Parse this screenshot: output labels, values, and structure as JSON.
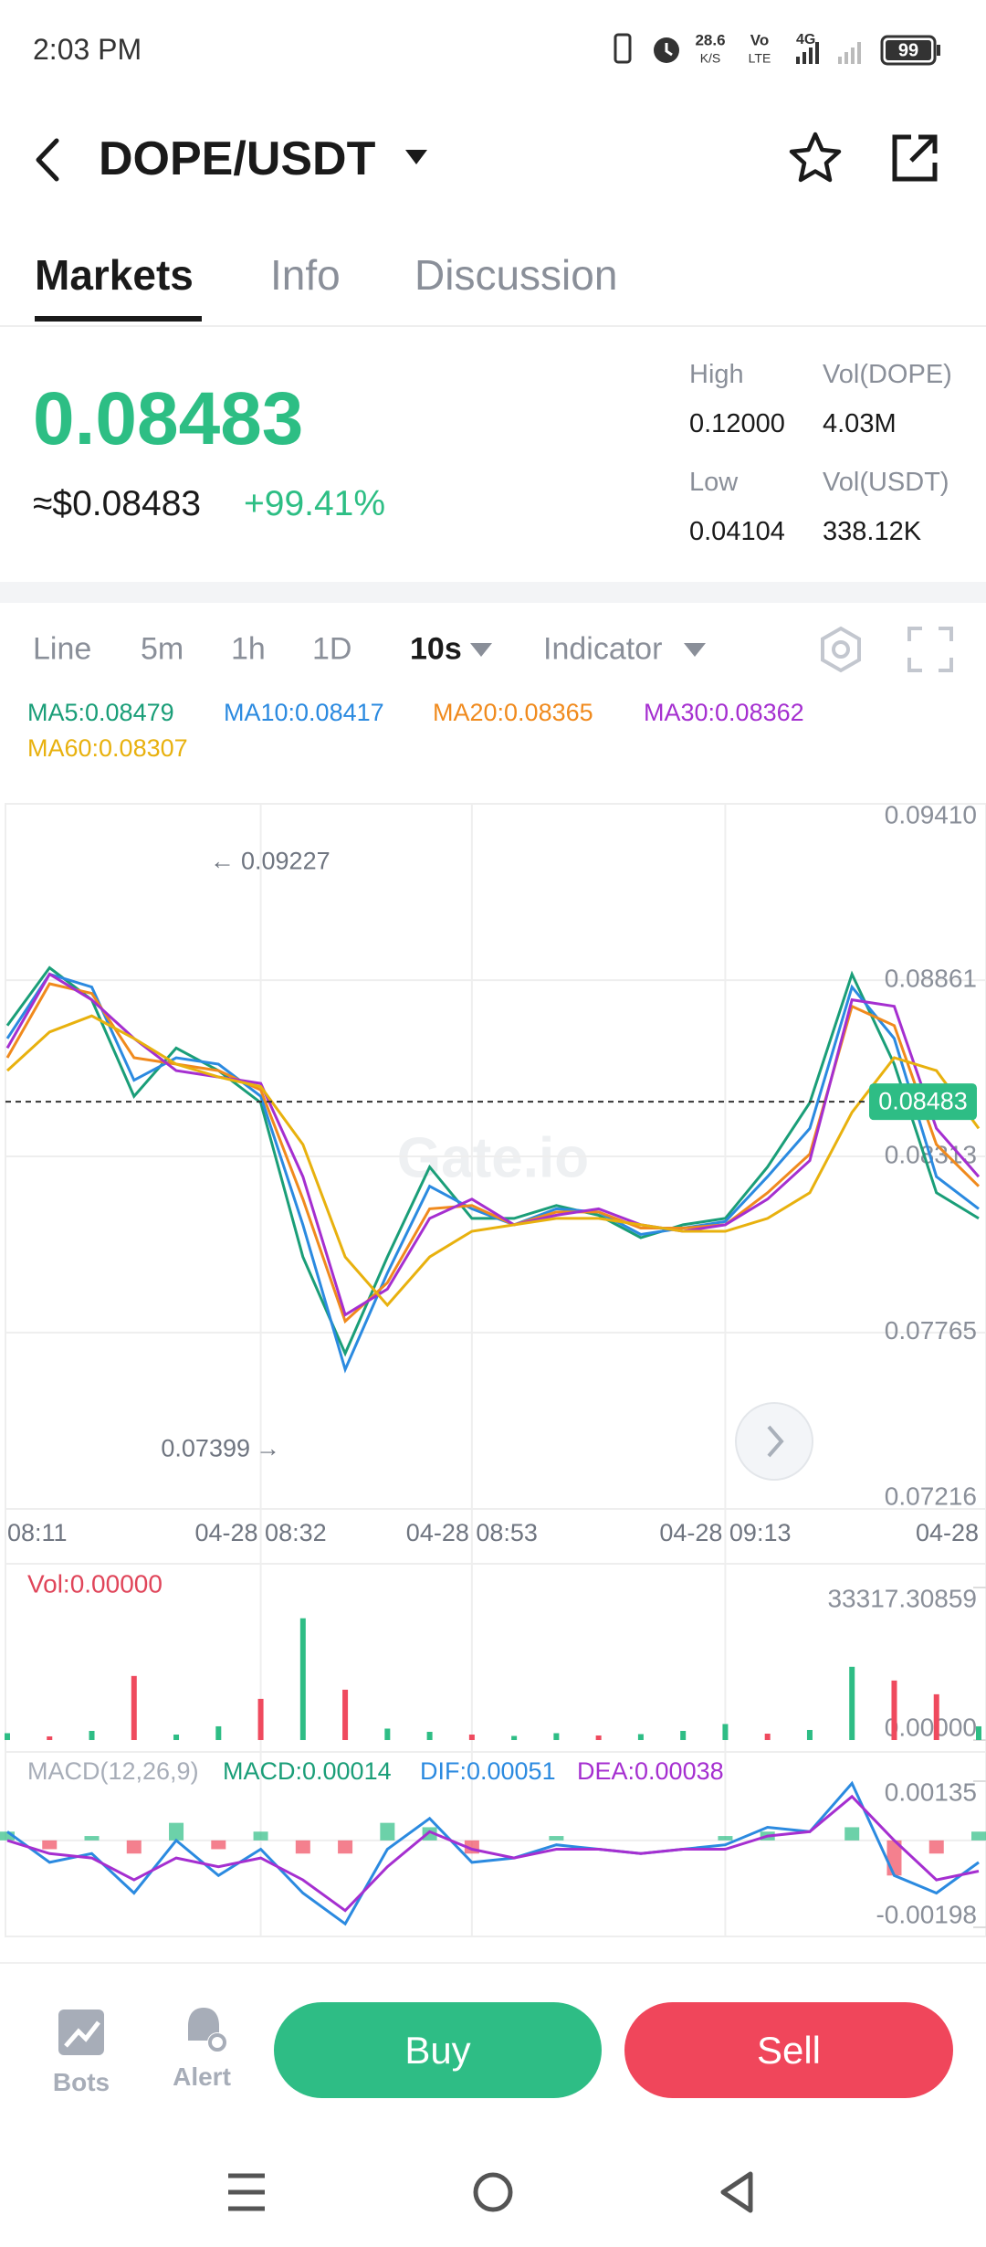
{
  "status_bar": {
    "time": "2:03 PM",
    "speed": "28.6",
    "speed_unit": "K/S",
    "volte_top": "Vo",
    "volte_bottom": "LTE",
    "network": "4G",
    "battery": "99"
  },
  "header": {
    "title": "DOPE/USDT"
  },
  "tabs": [
    "Markets",
    "Info",
    "Discussion"
  ],
  "ticker": {
    "price": "0.08483",
    "approx": "≈$0.08483",
    "change": "+99.41%",
    "stats": [
      {
        "label": "High",
        "value": "0.12000"
      },
      {
        "label": "Vol(DOPE)",
        "value": "4.03M"
      },
      {
        "label": "Low",
        "value": "0.04104"
      },
      {
        "label": "Vol(USDT)",
        "value": "338.12K"
      }
    ]
  },
  "toolbar": [
    "Line",
    "5m",
    "1h",
    "1D",
    "10s",
    "Indicator"
  ],
  "actions": {
    "bots": "Bots",
    "alert": "Alert",
    "buy": "Buy",
    "sell": "Sell"
  },
  "chart_data": [
    {
      "type": "line",
      "watermark": "Gate.io",
      "grid": true,
      "categories": [
        "08:11",
        null,
        null,
        null,
        null,
        null,
        "04-28 08:32",
        null,
        null,
        null,
        null,
        "04-28 08:53",
        null,
        null,
        null,
        null,
        null,
        "04-28 09:13",
        null,
        null,
        null,
        null,
        null,
        "04-28"
      ],
      "series": [
        {
          "name": "MA5:0.08479",
          "color": "#1a9e78",
          "values": [
            0.0872,
            0.089,
            0.088,
            0.085,
            0.0865,
            0.0858,
            0.0848,
            0.08,
            0.077,
            0.08,
            0.0828,
            0.0812,
            0.0812,
            0.0816,
            0.0813,
            0.0806,
            0.081,
            0.0812,
            0.0828,
            0.0848,
            0.0888,
            0.086,
            0.082,
            0.0812
          ]
        },
        {
          "name": "MA10:0.08417",
          "color": "#2b8ae0",
          "values": [
            0.0868,
            0.0888,
            0.0884,
            0.0855,
            0.0862,
            0.086,
            0.085,
            0.081,
            0.0765,
            0.0795,
            0.0822,
            0.0815,
            0.081,
            0.0815,
            0.0814,
            0.0807,
            0.0809,
            0.0811,
            0.0825,
            0.084,
            0.0884,
            0.0868,
            0.0825,
            0.0815
          ]
        },
        {
          "name": "MA20:0.08365",
          "color": "#f08a1d",
          "values": [
            0.0862,
            0.0885,
            0.0882,
            0.0862,
            0.086,
            0.0858,
            0.0852,
            0.0818,
            0.078,
            0.0792,
            0.0815,
            0.0816,
            0.081,
            0.0814,
            0.0814,
            0.0809,
            0.0809,
            0.081,
            0.082,
            0.0832,
            0.0878,
            0.0872,
            0.0835,
            0.0822
          ]
        },
        {
          "name": "MA30:0.08362",
          "color": "#a52fd0",
          "values": [
            0.0865,
            0.0888,
            0.088,
            0.0868,
            0.0858,
            0.0856,
            0.0854,
            0.0825,
            0.0782,
            0.079,
            0.0812,
            0.0818,
            0.081,
            0.0813,
            0.0815,
            0.081,
            0.0808,
            0.081,
            0.0818,
            0.083,
            0.088,
            0.0878,
            0.084,
            0.0825
          ]
        },
        {
          "name": "MA60:0.08307",
          "color": "#e8b10e",
          "values": [
            0.0858,
            0.087,
            0.0875,
            0.0868,
            0.086,
            0.0856,
            0.0853,
            0.0835,
            0.08,
            0.0785,
            0.08,
            0.0808,
            0.081,
            0.0812,
            0.0812,
            0.081,
            0.0808,
            0.0808,
            0.0812,
            0.082,
            0.0845,
            0.0862,
            0.0858,
            0.084
          ]
        }
      ],
      "ylim": [
        0.07216,
        0.0941
      ],
      "yticks": [
        {
          "value": 0.0941,
          "label": "0.09410"
        },
        0.08861,
        0.08313,
        0.07765,
        0.07216
      ],
      "last_price": 0.08483,
      "high_marker": 0.09227,
      "low_marker": 0.07399
    },
    {
      "type": "bar",
      "title": "Vol:0.00000",
      "values": [
        1500,
        800,
        2000,
        14000,
        1200,
        3000,
        9000,
        26600,
        11000,
        2500,
        1800,
        1200,
        900,
        1500,
        1000,
        1300,
        2000,
        3500,
        1400,
        2200,
        16000,
        13000,
        10000,
        3000
      ],
      "colors": [
        "#2ebd85",
        "#ef4a5e",
        "#2ebd85",
        "#ef4a5e",
        "#2ebd85",
        "#2ebd85",
        "#ef4a5e",
        "#2ebd85",
        "#ef4a5e",
        "#2ebd85",
        "#2ebd85",
        "#ef4a5e",
        "#2ebd85",
        "#2ebd85",
        "#ef4a5e",
        "#2ebd85",
        "#2ebd85",
        "#2ebd85",
        "#ef4a5e",
        "#2ebd85",
        "#2ebd85",
        "#ef4a5e",
        "#ef4a5e",
        "#2ebd85"
      ],
      "ylim": [
        0,
        33317.30859
      ],
      "yticks": [
        {
          "value": 0,
          "label": "0.00000"
        },
        33317.30859
      ]
    },
    {
      "type": "macd",
      "title": "MACD(12,26,9)",
      "bars": {
        "name": "MACD:0.00014",
        "up_color": "#2ebd85",
        "down_color": "#ef4a5e",
        "values": [
          0.0002,
          -0.0002,
          0.0001,
          -0.0003,
          0.0004,
          -0.0002,
          0.0002,
          -0.0003,
          -0.0003,
          0.0004,
          0.0003,
          -0.0003,
          0,
          0.0001,
          0,
          0,
          0,
          0.0001,
          0.0002,
          0,
          0.0003,
          -0.0008,
          -0.0003,
          0.0002
        ]
      },
      "series": [
        {
          "name": "DIF:0.00051",
          "color": "#2b8ae0",
          "values": [
            0.0002,
            -0.0005,
            -0.0003,
            -0.0012,
            0,
            -0.0008,
            -0.0002,
            -0.0012,
            -0.0019,
            -0.0002,
            0.0005,
            -0.0005,
            -0.0004,
            -0.0001,
            -0.0002,
            -0.0003,
            -0.0002,
            -0.0001,
            0.0003,
            0.0002,
            0.0013,
            -0.0008,
            -0.0012,
            -0.0005
          ]
        },
        {
          "name": "DEA:0.00038",
          "color": "#a52fd0",
          "values": [
            0,
            -0.0003,
            -0.0004,
            -0.0009,
            -0.0004,
            -0.0006,
            -0.0004,
            -0.0009,
            -0.0016,
            -0.0006,
            0.0002,
            -0.0002,
            -0.0004,
            -0.0002,
            -0.0002,
            -0.0003,
            -0.0002,
            -0.0002,
            0.0001,
            0.0002,
            0.001,
            0,
            -0.0009,
            -0.0007
          ]
        }
      ],
      "ylim": [
        -0.00198,
        0.00135
      ],
      "yticks": [
        -0.00198,
        0.00135
      ]
    }
  ]
}
